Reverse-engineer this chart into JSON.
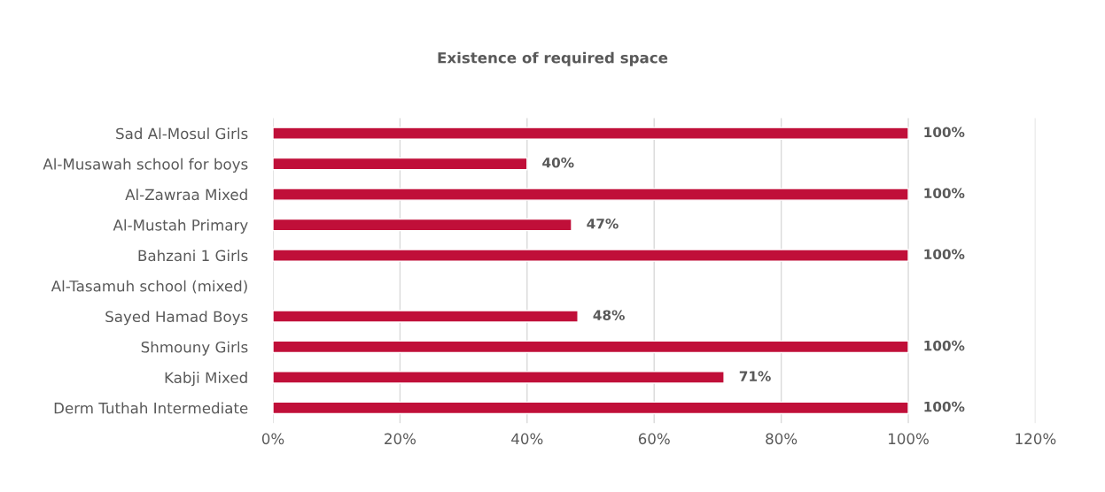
{
  "chart_data": {
    "type": "bar",
    "orientation": "horizontal",
    "title": "Existence of required space",
    "categories": [
      "Sad Al-Mosul Girls",
      "Al-Musawah school for boys",
      "Al-Zawraa Mixed",
      "Al-Mustah Primary",
      "Bahzani 1 Girls",
      "Al-Tasamuh school (mixed)",
      "Sayed Hamad Boys",
      "Shmouny Girls",
      "Kabji Mixed",
      "Derm Tuthah Intermediate"
    ],
    "values": [
      100,
      40,
      100,
      47,
      100,
      null,
      48,
      100,
      71,
      100
    ],
    "value_labels": [
      "100%",
      "40%",
      "100%",
      "47%",
      "100%",
      null,
      "48%",
      "100%",
      "71%",
      "100%"
    ],
    "color": "#c00f39",
    "xlim": [
      0,
      120
    ],
    "xticks": [
      {
        "value": 0,
        "label": "0%"
      },
      {
        "value": 20,
        "label": "20%"
      },
      {
        "value": 40,
        "label": "40%"
      },
      {
        "value": 60,
        "label": "60%"
      },
      {
        "value": 80,
        "label": "80%"
      },
      {
        "value": 100,
        "label": "100%"
      },
      {
        "value": 120,
        "label": "120%"
      }
    ],
    "grid": "x",
    "legend": false
  }
}
